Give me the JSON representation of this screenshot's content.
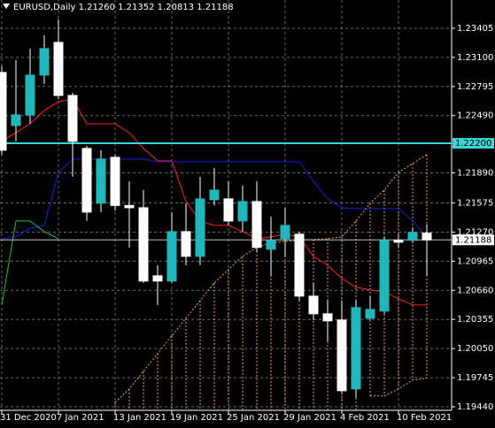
{
  "chart_data": {
    "type": "candlestick",
    "title": "EURUSD,Daily  1.21260 1.21352 1.20813 1.21188",
    "categories": [
      "31 Dec 2020",
      null,
      null,
      null,
      "7 Jan 2021",
      null,
      null,
      null,
      "13 Jan 2021",
      null,
      null,
      null,
      "19 Jan 2021",
      null,
      null,
      null,
      "25 Jan 2021",
      null,
      null,
      null,
      "29 Jan 2021",
      null,
      null,
      null,
      "4 Feb 2021",
      null,
      null,
      null,
      "10 Feb 2021",
      null,
      null
    ],
    "open": [
      1.22942,
      1.22386,
      1.22498,
      1.22914,
      1.23257,
      1.22701,
      1.22146,
      1.21572,
      1.22053,
      1.21549,
      1.21525,
      1.20812,
      1.20757,
      1.21275,
      1.21016,
      1.21609,
      1.21618,
      1.21386,
      1.2159,
      1.2109,
      1.21201,
      1.21248,
      1.20599,
      1.20414,
      1.20349,
      1.19627,
      1.20368,
      1.20442,
      1.21183,
      1.21183,
      1.2126
    ],
    "high": [
      1.23007,
      1.23072,
      1.23192,
      1.23331,
      1.23498,
      1.22729,
      1.22173,
      1.22127,
      1.22081,
      1.21803,
      1.2171,
      1.20923,
      1.21479,
      1.21572,
      1.21849,
      1.21942,
      1.21803,
      1.21757,
      1.21803,
      1.21433,
      1.21525,
      1.21275,
      1.20738,
      1.20553,
      1.20553,
      1.20553,
      1.20599,
      1.2122,
      1.21248,
      1.21312,
      1.21352
    ],
    "low": [
      1.22081,
      1.2222,
      1.22405,
      1.22822,
      1.22664,
      1.21849,
      1.21386,
      1.21479,
      1.21498,
      1.21109,
      1.20738,
      1.20507,
      1.20738,
      1.20923,
      1.20923,
      1.21549,
      1.2134,
      1.21275,
      1.21062,
      1.20812,
      1.21016,
      1.20553,
      1.20349,
      1.20127,
      1.19581,
      1.19534,
      1.20349,
      1.20414,
      1.21109,
      1.21155,
      1.20813
    ],
    "close": [
      1.22127,
      1.22498,
      1.22914,
      1.23192,
      1.22701,
      1.2222,
      1.21479,
      1.22035,
      1.21549,
      1.21525,
      1.20757,
      1.20757,
      1.21275,
      1.21016,
      1.21618,
      1.2171,
      1.21386,
      1.2159,
      1.21109,
      1.21183,
      1.2134,
      1.20599,
      1.20414,
      1.2034,
      1.19608,
      1.20479,
      1.2046,
      1.21183,
      1.21164,
      1.21266,
      1.21188
    ],
    "up_color": "#1fb7b7",
    "down_color": "#ffffff",
    "indicators": [
      {
        "color": "#ff2020",
        "style": "solid",
        "values": [
          1.2222,
          1.22312,
          1.22405,
          1.22544,
          1.22636,
          1.22664,
          1.22405,
          1.22405,
          1.22405,
          1.22312,
          1.22146,
          1.22016,
          1.22016,
          1.2159,
          1.21386,
          1.2134,
          1.2134,
          1.21275,
          1.21201,
          1.2122,
          1.21248,
          1.2122,
          1.21016,
          1.20923,
          1.20784,
          1.20692,
          1.20664,
          1.20646,
          1.20571,
          1.20507,
          1.20507
        ]
      },
      {
        "color": "#1f1fd6",
        "style": "solid",
        "values": [
          1.21201,
          1.2122,
          1.21312,
          1.2134,
          1.21896,
          1.22035,
          1.22035,
          1.22035,
          1.22035,
          1.22035,
          1.22035,
          1.22007,
          1.22007,
          1.22007,
          1.22007,
          1.22007,
          1.22007,
          1.22007,
          1.22007,
          1.22007,
          1.22007,
          1.22007,
          1.21803,
          1.21618,
          1.21525,
          1.21516,
          1.21516,
          1.21516,
          1.21516,
          1.21386,
          1.2122
        ]
      },
      {
        "color": "#22c322",
        "style": "solid",
        "values": [
          1.20507,
          1.21386,
          1.21386,
          1.21275,
          1.21201,
          null,
          null,
          null,
          null,
          null,
          null,
          null,
          null,
          null,
          null,
          null,
          null,
          null,
          null,
          null,
          null,
          null,
          null,
          null,
          null,
          null,
          null,
          null,
          null,
          null,
          null
        ]
      },
      {
        "color": "#f4a460",
        "style": "dotted",
        "values": [
          null,
          null,
          null,
          null,
          null,
          null,
          null,
          null,
          1.19488,
          1.19627,
          1.19812,
          1.19997,
          1.20183,
          1.20368,
          1.20553,
          1.20738,
          1.20877,
          1.21016,
          1.21109,
          1.21155,
          1.21173,
          1.21183,
          1.21192,
          1.21201,
          1.2122,
          1.21386,
          1.21572,
          1.2171,
          1.21896,
          1.21988,
          1.22081
        ]
      },
      {
        "color": "#f4a460",
        "style": "dotted",
        "values": [
          null,
          null,
          null,
          null,
          null,
          null,
          null,
          null,
          null,
          null,
          null,
          null,
          null,
          null,
          null,
          null,
          null,
          null,
          null,
          null,
          null,
          null,
          null,
          null,
          null,
          null,
          1.19553,
          1.19553,
          1.19627,
          1.1972,
          1.19738
        ]
      }
    ],
    "price_lines": [
      {
        "value": 1.222,
        "label": "1.22200",
        "color": "#3ad6d6"
      },
      {
        "value": 1.21188,
        "label": "1.21188",
        "color": "#c0c0c0"
      }
    ],
    "ylim": [
      1.19403,
      1.23701
    ],
    "yticks": [
      {
        "value": 1.23405,
        "label": "1.23405"
      },
      {
        "value": 1.231,
        "label": "1.23100"
      },
      {
        "value": 1.22795,
        "label": "1.22795"
      },
      {
        "value": 1.2249,
        "label": "1.22490"
      },
      {
        "value": 1.2189,
        "label": "1.21890"
      },
      {
        "value": 1.21575,
        "label": "1.21575"
      },
      {
        "value": 1.2127,
        "label": "1.21270"
      },
      {
        "value": 1.20965,
        "label": "1.20965"
      },
      {
        "value": 1.2066,
        "label": "1.20660"
      },
      {
        "value": 1.20355,
        "label": "1.20355"
      },
      {
        "value": 1.2005,
        "label": "1.20050"
      },
      {
        "value": 1.19745,
        "label": "1.19745"
      },
      {
        "value": 1.1944,
        "label": "1.19440"
      }
    ],
    "grid": true
  }
}
